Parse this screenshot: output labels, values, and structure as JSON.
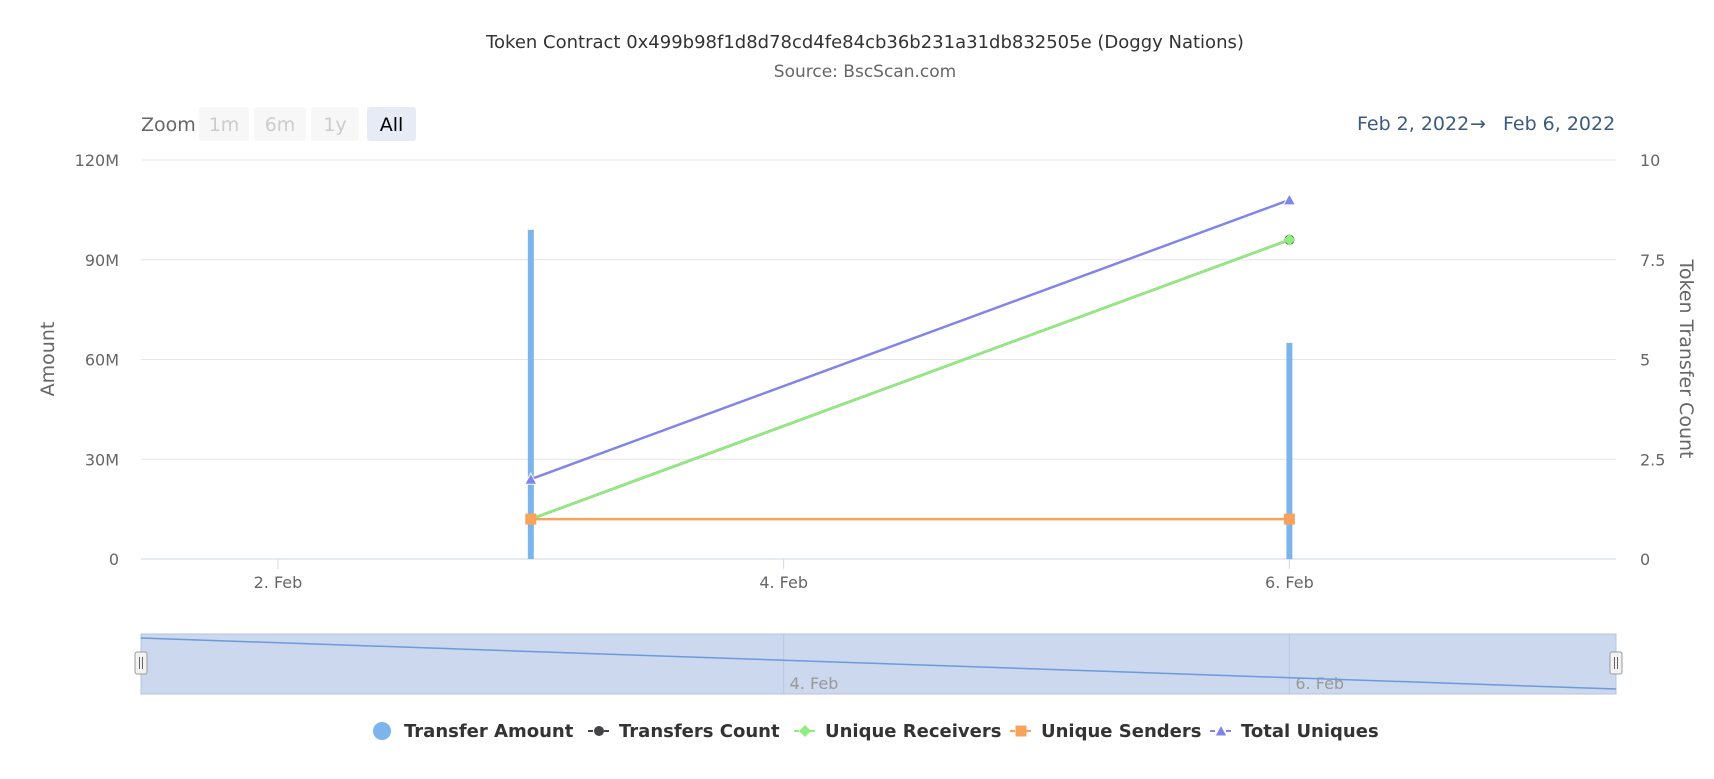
{
  "chart_data": {
    "type": "bar",
    "title": "Token Contract 0x499b98f1d8d78cd4fe84cb36b231a31db832505e (Doggy Nations)",
    "subtitle": "Source: BscScan.com",
    "zoom": {
      "label": "Zoom",
      "buttons": [
        {
          "label": "1m",
          "active": false,
          "disabled": true
        },
        {
          "label": "6m",
          "active": false,
          "disabled": true
        },
        {
          "label": "1y",
          "active": false,
          "disabled": true
        },
        {
          "label": "All",
          "active": true,
          "disabled": false
        }
      ]
    },
    "range": {
      "from": "Feb 2, 2022",
      "arrow": "→",
      "to": "Feb 6, 2022"
    },
    "x_axis": {
      "type": "datetime",
      "min": "2022-02-01T11:00",
      "max": "2022-02-07T07:00",
      "ticks": [
        {
          "date": "2022-02-02",
          "label": "2. Feb"
        },
        {
          "date": "2022-02-04",
          "label": "4. Feb"
        },
        {
          "date": "2022-02-06",
          "label": "6. Feb"
        }
      ]
    },
    "y_left": {
      "title": "Amount",
      "min": 0,
      "max": 120000000,
      "ticks": [
        {
          "value": 0,
          "label": "0"
        },
        {
          "value": 30000000,
          "label": "30M"
        },
        {
          "value": 60000000,
          "label": "60M"
        },
        {
          "value": 90000000,
          "label": "90M"
        },
        {
          "value": 120000000,
          "label": "120M"
        }
      ]
    },
    "y_right": {
      "title": "Token Transfer Count",
      "min": 0,
      "max": 10,
      "ticks": [
        {
          "value": 0,
          "label": "0"
        },
        {
          "value": 2.5,
          "label": "2.5"
        },
        {
          "value": 5,
          "label": "5"
        },
        {
          "value": 7.5,
          "label": "7.5"
        },
        {
          "value": 10,
          "label": "10"
        }
      ]
    },
    "series": [
      {
        "name": "Transfer Amount",
        "type": "column",
        "axis": "left",
        "color": "#7cb5ec",
        "marker": "circle",
        "data": [
          {
            "x": "2022-02-03",
            "y": 99000000
          },
          {
            "x": "2022-02-06",
            "y": 65000000
          }
        ]
      },
      {
        "name": "Transfers Count",
        "type": "line",
        "axis": "right",
        "color": "#434348",
        "marker": "circle",
        "data": [
          {
            "x": "2022-02-03",
            "y": 1
          },
          {
            "x": "2022-02-06",
            "y": 8
          }
        ]
      },
      {
        "name": "Unique Receivers",
        "type": "line",
        "axis": "right",
        "color": "#90ed7d",
        "marker": "diamond",
        "data": [
          {
            "x": "2022-02-03",
            "y": 1
          },
          {
            "x": "2022-02-06",
            "y": 8
          }
        ]
      },
      {
        "name": "Unique Senders",
        "type": "line",
        "axis": "right",
        "color": "#f7a35c",
        "marker": "square",
        "data": [
          {
            "x": "2022-02-03",
            "y": 1
          },
          {
            "x": "2022-02-06",
            "y": 1
          }
        ]
      },
      {
        "name": "Total Uniques",
        "type": "line",
        "axis": "right",
        "color": "#8085e9",
        "marker": "triangle",
        "data": [
          {
            "x": "2022-02-03",
            "y": 2
          },
          {
            "x": "2022-02-06",
            "y": 9
          }
        ]
      }
    ],
    "navigator": {
      "series_color": "#6b9bd9",
      "ticks": [
        {
          "date": "2022-02-04",
          "label": "4. Feb"
        },
        {
          "date": "2022-02-06",
          "label": "6. Feb"
        }
      ]
    },
    "legend": {
      "position": "bottom-center"
    },
    "grid": true
  }
}
